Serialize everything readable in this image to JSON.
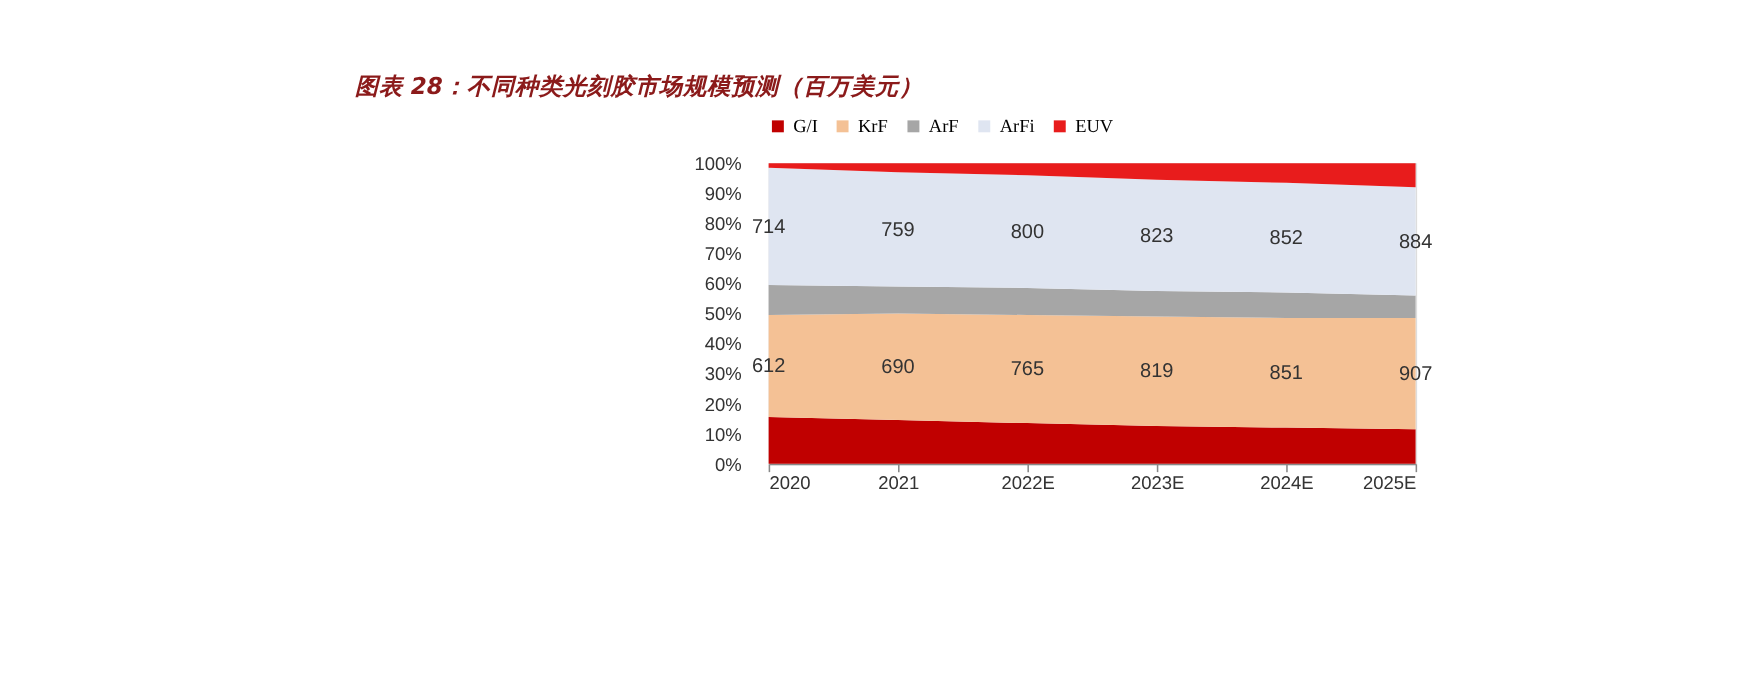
{
  "chart_data": {
    "type": "area",
    "stacked": true,
    "title": "图表 28：不同种类光刻胶市场规模预测（百万美元）",
    "categories": [
      "2020",
      "2021",
      "2022E",
      "2023E",
      "2024E",
      "2025E"
    ],
    "series": [
      {
        "name": "G/I",
        "color": "#c00000",
        "values": [
          15.5,
          14.5,
          13.5,
          12.5,
          12,
          11.5
        ]
      },
      {
        "name": "KrF",
        "color": "#f4c195",
        "values": [
          34,
          35.5,
          36,
          36.5,
          36.5,
          37
        ]
      },
      {
        "name": "ArF",
        "color": "#a6a6a6",
        "values": [
          10,
          9,
          9,
          8.5,
          8.5,
          7.5
        ]
      },
      {
        "name": "ArFi",
        "color": "#dfe5f1",
        "values": [
          39,
          38,
          37.5,
          37,
          36.5,
          36
        ]
      },
      {
        "name": "EUV",
        "color": "#e81c1c",
        "values": [
          1.5,
          3,
          4,
          5.5,
          6.5,
          8
        ]
      }
    ],
    "annotations": [
      "612",
      "690",
      "765",
      "819",
      "851",
      "907",
      "714",
      "759",
      "800",
      "823",
      "852",
      "884"
    ],
    "ylim": [
      0,
      100
    ],
    "yticks": [
      {
        "value": 0,
        "label": "0%"
      },
      {
        "value": 10,
        "label": "10%"
      },
      {
        "value": 20,
        "label": "20%"
      },
      {
        "value": 30,
        "label": "30%"
      },
      {
        "value": 40,
        "label": "40%"
      },
      {
        "value": 50,
        "label": "50%"
      },
      {
        "value": 60,
        "label": "60%"
      },
      {
        "value": 70,
        "label": "70%"
      },
      {
        "value": 80,
        "label": "80%"
      },
      {
        "value": 90,
        "label": "90%"
      },
      {
        "value": 100,
        "label": "100%"
      }
    ],
    "legend": "top",
    "grid": false
  }
}
